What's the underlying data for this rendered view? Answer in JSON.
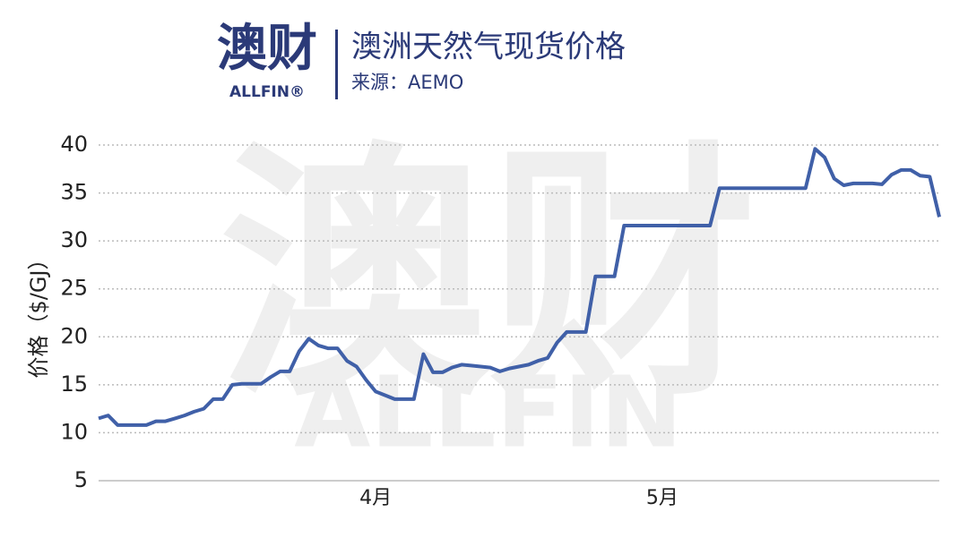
{
  "logo": {
    "name": "澳财",
    "brand": "ALLFIN®"
  },
  "watermark": "ALLFIN",
  "chart_data": {
    "type": "line",
    "title": "澳洲天然气现货价格",
    "subtitle": "来源：AEMO",
    "y_label": "价格（$/GJ）",
    "categories": [
      null,
      null,
      null,
      null,
      null,
      null,
      null,
      null,
      null,
      null,
      null,
      null,
      null,
      null,
      null,
      null,
      null,
      null,
      null,
      null,
      null,
      null,
      null,
      null,
      null,
      null,
      null,
      null,
      null,
      "4月",
      null,
      null,
      null,
      null,
      null,
      null,
      null,
      null,
      null,
      null,
      null,
      null,
      null,
      null,
      null,
      null,
      null,
      null,
      null,
      null,
      null,
      null,
      null,
      null,
      null,
      null,
      null,
      null,
      null,
      "5月",
      null,
      null,
      null,
      null,
      null,
      null,
      null,
      null,
      null,
      null,
      null,
      null,
      null,
      null,
      null,
      null,
      null,
      null,
      null,
      null,
      null,
      null,
      null,
      null,
      null,
      null,
      null,
      null,
      null
    ],
    "series": [
      {
        "color": "#4060a8",
        "values": [
          11.5,
          11.8,
          10.8,
          10.8,
          10.8,
          10.8,
          11.2,
          11.2,
          11.5,
          11.8,
          12.2,
          12.5,
          13.5,
          13.5,
          15.0,
          15.1,
          15.1,
          15.1,
          15.8,
          16.4,
          16.4,
          18.5,
          19.8,
          19.1,
          18.8,
          18.8,
          17.5,
          16.9,
          15.5,
          14.3,
          13.9,
          13.5,
          13.5,
          13.5,
          18.2,
          16.3,
          16.3,
          16.8,
          17.1,
          17.0,
          16.9,
          16.8,
          16.4,
          16.7,
          16.9,
          17.1,
          17.5,
          17.8,
          19.4,
          20.5,
          20.5,
          20.5,
          26.3,
          26.3,
          26.3,
          31.6,
          31.6,
          31.6,
          31.6,
          31.6,
          31.6,
          31.6,
          31.6,
          31.6,
          31.6,
          35.5,
          35.5,
          35.5,
          35.5,
          35.5,
          35.5,
          35.5,
          35.5,
          35.5,
          35.5,
          39.6,
          38.7,
          36.5,
          35.8,
          36.0,
          36.0,
          36.0,
          35.9,
          36.9,
          37.4,
          37.4,
          36.8,
          36.7,
          32.5
        ]
      }
    ],
    "ylim": [
      5,
      40
    ],
    "yticks": [
      5,
      10,
      15,
      20,
      25,
      30,
      35,
      40
    ],
    "grid": true
  }
}
